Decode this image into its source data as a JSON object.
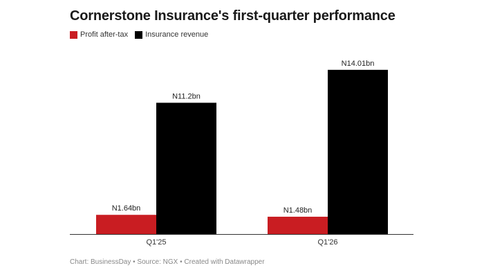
{
  "title": "Cornerstone Insurance's first-quarter performance",
  "legend": [
    {
      "label": "Profit after-tax",
      "color": "#c91d22"
    },
    {
      "label": "Insurance revenue",
      "color": "#000000"
    }
  ],
  "footer": "Chart: BusinessDay • Source: NGX • Created with Datawrapper",
  "chart_data": {
    "type": "bar",
    "title": "Cornerstone Insurance's first-quarter performance",
    "categories": [
      "Q1'25",
      "Q1'26"
    ],
    "series": [
      {
        "name": "Profit after-tax",
        "color": "#c91d22",
        "values": [
          1.64,
          1.48
        ],
        "labels": [
          "N1.64bn",
          "N1.48bn"
        ]
      },
      {
        "name": "Insurance revenue",
        "color": "#000000",
        "values": [
          11.2,
          14.01
        ],
        "labels": [
          "N11.2bn",
          "N14.01bn"
        ]
      }
    ],
    "ylim": [
      0,
      15
    ],
    "grid": false,
    "legend": "top-left"
  }
}
